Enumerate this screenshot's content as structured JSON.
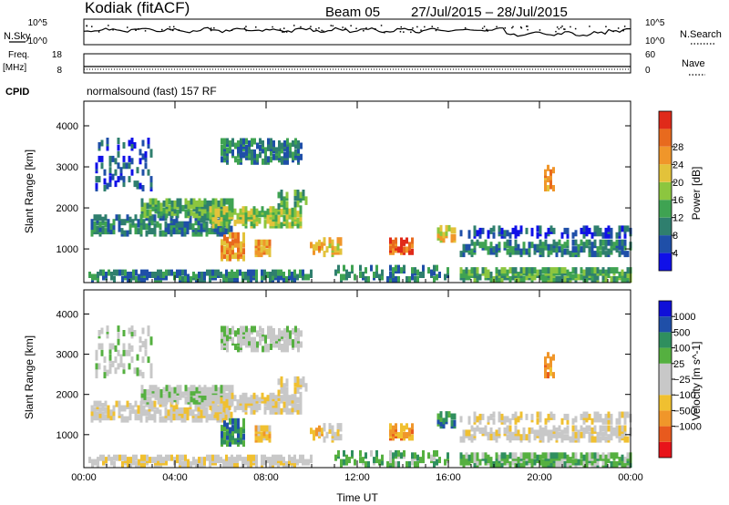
{
  "header": {
    "station": "Kodiak (fitACF)",
    "beam": "Beam 05",
    "date_range": "27/Jul/2015 – 28/Jul/2015"
  },
  "summary": {
    "nsky_label": "N.Sky",
    "nsearch_label": "N.Search",
    "freq_label": "Freq.",
    "freq_unit": "[MHz]",
    "nave_label": "Nave",
    "cpid_label": "CPID",
    "cpid_value": "normalsound (fast) 157 RF",
    "noise_ticks_left": [
      "10^5",
      "10^0"
    ],
    "noise_ticks_right": [
      "10^5",
      "10^0"
    ],
    "freq_ticks": [
      "18",
      "8"
    ],
    "nave_ticks": [
      "60",
      "0"
    ]
  },
  "colors": {
    "power": [
      "#1010e8",
      "#1f4fa8",
      "#2f7f6e",
      "#3fa352",
      "#8cc63f",
      "#e3c23a",
      "#f0962a",
      "#e86a1e",
      "#e02a1a"
    ],
    "velocity": [
      "#e8141a",
      "#e85a1e",
      "#f0962a",
      "#f0c030",
      "#c8c8c8",
      "#c8c8c8",
      "#55b040",
      "#2f8f5e",
      "#1f4fa8",
      "#1010d8"
    ]
  },
  "chart_data": [
    {
      "type": "heatmap",
      "name": "power",
      "xlabel": "",
      "ylabel": "Slant Range [km]",
      "x_ticks": [
        "00:00",
        "04:00",
        "08:00",
        "12:00",
        "16:00",
        "20:00",
        "00:00"
      ],
      "x_range_hours": [
        0,
        24
      ],
      "y_ticks": [
        1000,
        2000,
        3000,
        4000
      ],
      "ylim": [
        180,
        4600
      ],
      "colorbar_label": "Power [dB]",
      "colorbar_ticks": [
        4,
        8,
        12,
        16,
        20,
        24,
        28
      ],
      "colorbar_range": [
        0,
        30
      ]
    },
    {
      "type": "heatmap",
      "name": "velocity",
      "xlabel": "Time UT",
      "ylabel": "Slant Range [km]",
      "x_ticks": [
        "00:00",
        "04:00",
        "08:00",
        "12:00",
        "16:00",
        "20:00",
        "00:00"
      ],
      "x_range_hours": [
        0,
        24
      ],
      "y_ticks": [
        1000,
        2000,
        3000,
        4000
      ],
      "ylim": [
        180,
        4600
      ],
      "colorbar_label": "Velocity [m s^-1]",
      "colorbar_ticks": [
        "1000",
        "500",
        "100",
        "25",
        "−25",
        "−100",
        "−500",
        "−1000"
      ]
    }
  ]
}
